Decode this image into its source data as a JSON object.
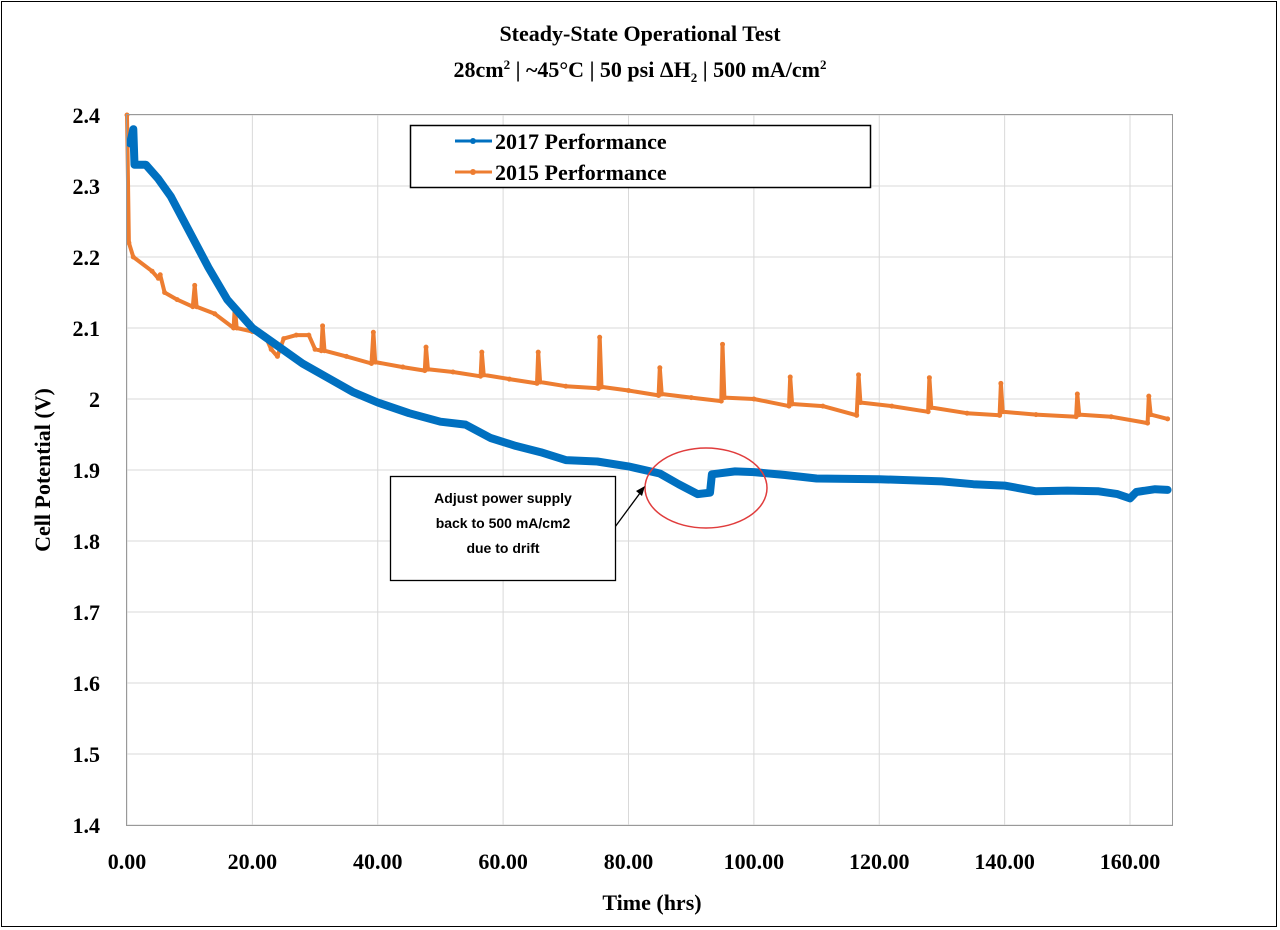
{
  "chart_data": {
    "type": "line",
    "title": "Steady-State Operational Test",
    "subtitle": {
      "area": "28cm",
      "area_sup": "2",
      "temp": " | ~45°C | 50 psi ΔH",
      "h2_sub": "2",
      "current": " |  500 mA/cm",
      "current_sup": "2"
    },
    "xlabel": "Time (hrs)",
    "ylabel": "Cell Potential (V)",
    "xlim": [
      0,
      166.7
    ],
    "ylim": [
      1.4,
      2.4
    ],
    "grid": true,
    "legend_position": "top-center",
    "x_ticks": [
      0,
      20,
      40,
      60,
      80,
      100,
      120,
      140,
      160
    ],
    "x_tick_labels": [
      "0.00",
      "20.00",
      "40.00",
      "60.00",
      "80.00",
      "100.00",
      "120.00",
      "140.00",
      "160.00"
    ],
    "y_ticks": [
      2.4,
      2.3,
      2.2,
      2.1,
      2.0,
      1.9,
      1.8,
      1.7,
      1.6,
      1.5,
      1.4
    ],
    "y_tick_labels": [
      "2.4",
      "2.3",
      "2.2",
      "2.1",
      "2",
      "1.9",
      "1.8",
      "1.7",
      "1.6",
      "1.5",
      "1.4"
    ],
    "series": [
      {
        "name": "2017 Performance",
        "color": "#0070C0",
        "points": [
          [
            0.5,
            2.36
          ],
          [
            1,
            2.38
          ],
          [
            1.2,
            2.33
          ],
          [
            3,
            2.33
          ],
          [
            5,
            2.31
          ],
          [
            7,
            2.285
          ],
          [
            10,
            2.235
          ],
          [
            13,
            2.185
          ],
          [
            16,
            2.14
          ],
          [
            20,
            2.1
          ],
          [
            24,
            2.075
          ],
          [
            28,
            2.05
          ],
          [
            32,
            2.03
          ],
          [
            36,
            2.01
          ],
          [
            40,
            1.995
          ],
          [
            45,
            1.98
          ],
          [
            50,
            1.968
          ],
          [
            54,
            1.964
          ],
          [
            58,
            1.945
          ],
          [
            62,
            1.934
          ],
          [
            66,
            1.925
          ],
          [
            70,
            1.914
          ],
          [
            75,
            1.912
          ],
          [
            80,
            1.905
          ],
          [
            85,
            1.895
          ],
          [
            88,
            1.88
          ],
          [
            91,
            1.866
          ],
          [
            93,
            1.868
          ],
          [
            93.3,
            1.894
          ],
          [
            97,
            1.898
          ],
          [
            100,
            1.897
          ],
          [
            105,
            1.893
          ],
          [
            110,
            1.888
          ],
          [
            120,
            1.887
          ],
          [
            130,
            1.884
          ],
          [
            135,
            1.88
          ],
          [
            140,
            1.878
          ],
          [
            145,
            1.87
          ],
          [
            150,
            1.871
          ],
          [
            155,
            1.87
          ],
          [
            158,
            1.866
          ],
          [
            160,
            1.86
          ],
          [
            161,
            1.869
          ],
          [
            164,
            1.873
          ],
          [
            166,
            1.872
          ]
        ]
      },
      {
        "name": "2015 Performance",
        "color": "#ED7D31",
        "points": [
          [
            0,
            2.4
          ],
          [
            0.3,
            2.22
          ],
          [
            1,
            2.2
          ],
          [
            4,
            2.18
          ],
          [
            5,
            2.17
          ],
          [
            5.3,
            2.175
          ],
          [
            6,
            2.15
          ],
          [
            8,
            2.14
          ],
          [
            10.5,
            2.13
          ],
          [
            10.8,
            2.16
          ],
          [
            11.1,
            2.13
          ],
          [
            14,
            2.12
          ],
          [
            17,
            2.1
          ],
          [
            17.2,
            2.13
          ],
          [
            17.5,
            2.1
          ],
          [
            20,
            2.095
          ],
          [
            22,
            2.09
          ],
          [
            23,
            2.07
          ],
          [
            24,
            2.06
          ],
          [
            25,
            2.085
          ],
          [
            27,
            2.09
          ],
          [
            29,
            2.09
          ],
          [
            30,
            2.07
          ],
          [
            31,
            2.068
          ],
          [
            31.2,
            2.103
          ],
          [
            31.5,
            2.068
          ],
          [
            35,
            2.06
          ],
          [
            39,
            2.05
          ],
          [
            39.3,
            2.094
          ],
          [
            39.6,
            2.052
          ],
          [
            44,
            2.045
          ],
          [
            47.5,
            2.04
          ],
          [
            47.7,
            2.073
          ],
          [
            48,
            2.042
          ],
          [
            52,
            2.038
          ],
          [
            56.4,
            2.032
          ],
          [
            56.6,
            2.066
          ],
          [
            56.9,
            2.034
          ],
          [
            61,
            2.028
          ],
          [
            65.4,
            2.022
          ],
          [
            65.6,
            2.066
          ],
          [
            65.9,
            2.024
          ],
          [
            70,
            2.018
          ],
          [
            75.2,
            2.015
          ],
          [
            75.4,
            2.087
          ],
          [
            75.7,
            2.017
          ],
          [
            80,
            2.012
          ],
          [
            84.8,
            2.005
          ],
          [
            85,
            2.044
          ],
          [
            85.3,
            2.007
          ],
          [
            90,
            2.002
          ],
          [
            94.8,
            1.997
          ],
          [
            95,
            2.077
          ],
          [
            95.3,
            2.002
          ],
          [
            100,
            2.0
          ],
          [
            105.6,
            1.99
          ],
          [
            105.8,
            2.031
          ],
          [
            106.1,
            1.993
          ],
          [
            111,
            1.99
          ],
          [
            116.4,
            1.977
          ],
          [
            116.7,
            2.034
          ],
          [
            117,
            1.995
          ],
          [
            122,
            1.99
          ],
          [
            127.8,
            1.982
          ],
          [
            128,
            2.03
          ],
          [
            128.3,
            1.988
          ],
          [
            134,
            1.98
          ],
          [
            139.2,
            1.977
          ],
          [
            139.4,
            2.022
          ],
          [
            139.7,
            1.982
          ],
          [
            145,
            1.978
          ],
          [
            151.4,
            1.975
          ],
          [
            151.6,
            2.007
          ],
          [
            151.9,
            1.978
          ],
          [
            157,
            1.975
          ],
          [
            162.8,
            1.966
          ],
          [
            163,
            2.004
          ],
          [
            163.3,
            1.978
          ],
          [
            166,
            1.972
          ]
        ]
      }
    ],
    "annotation": {
      "lines": [
        "Adjust power supply",
        "back to 500 mA/cm2",
        "due to drift"
      ],
      "target_x": 91,
      "target_y": 1.875,
      "circle_color": "#E03C3C"
    }
  }
}
